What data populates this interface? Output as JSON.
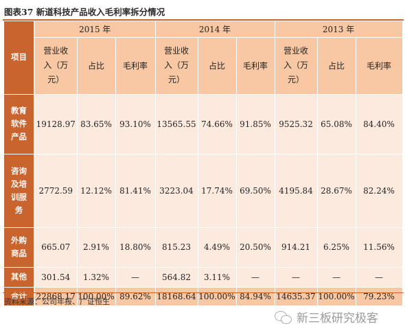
{
  "title": "图表37  新道科技产品收入毛利率拆分情况",
  "header": {
    "row_label": "项目",
    "years": [
      "2015 年",
      "2014 年",
      "2013 年"
    ],
    "revenue_line1": "营业收",
    "revenue_line2": "入（万",
    "revenue_line3": "元）",
    "share": "占比",
    "margin": "毛利率"
  },
  "rows": [
    {
      "label_lines": [
        "教育",
        "软件",
        "产品"
      ],
      "values": [
        "19128.97",
        "83.65%",
        "93.10%",
        "13565.55",
        "74.66%",
        "91.85%",
        "9525.32",
        "65.08%",
        "84.40%"
      ]
    },
    {
      "label_lines": [
        "咨询",
        "及培",
        "训服",
        "务"
      ],
      "values": [
        "2772.59",
        "12.12%",
        "81.41%",
        "3223.04",
        "17.74%",
        "69.50%",
        "4195.84",
        "28.67%",
        "82.24%"
      ]
    },
    {
      "label_lines": [
        "外购",
        "商品"
      ],
      "values": [
        "665.07",
        "2.91%",
        "18.80%",
        "815.23",
        "4.49%",
        "20.50%",
        "914.21",
        "6.25%",
        "11.56%"
      ]
    },
    {
      "label_lines": [
        "其他"
      ],
      "values": [
        "301.54",
        "1.32%",
        "—",
        "564.82",
        "3.11%",
        "—",
        "—",
        "—",
        "—"
      ]
    },
    {
      "label_lines": [
        "合计"
      ],
      "values": [
        "22868.17",
        "100.00%",
        "89.62%",
        "18168.64",
        "100.00%",
        "84.94%",
        "14635.37",
        "100.00%",
        "79.23%"
      ]
    }
  ],
  "source": "资料来源：公司年报、广证恒生",
  "watermark": "新三板研究极客"
}
